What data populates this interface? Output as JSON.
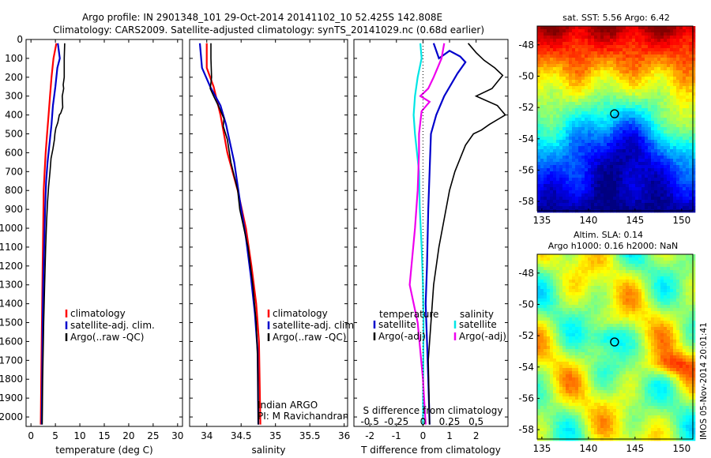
{
  "figure": {
    "title_line1": "Argo profile: IN 2901348_101 29-Oct-2014 20141102_10 52.425S 142.808E",
    "title_line2": "Climatology: CARS2009. Satellite-adjusted climatology: synTS_20141029.nc (0.68d earlier)",
    "side_stamp": "IMOS 05-Nov-2014 20:01:41"
  },
  "colors": {
    "climatology": "#ff0000",
    "satellite": "#0000cc",
    "argo": "#000000",
    "s_satellite": "#00e5e5",
    "s_argo": "#ee00ee"
  },
  "chart_data": [
    {
      "id": "temperature",
      "type": "line",
      "xlabel": "temperature (deg C)",
      "xlim": [
        -1,
        31
      ],
      "xticks": [
        0,
        5,
        10,
        15,
        20,
        25,
        30
      ],
      "ylim": [
        2050,
        0
      ],
      "yticks": [
        0,
        100,
        200,
        300,
        400,
        500,
        600,
        700,
        800,
        900,
        1000,
        1100,
        1200,
        1300,
        1400,
        1500,
        1600,
        1700,
        1800,
        1900,
        2000
      ],
      "legend": [
        "climatology",
        "satellite-adj. clim.",
        "Argo(..raw -QC)"
      ],
      "series": [
        {
          "key": "climatology",
          "x": [
            5.2,
            4.6,
            4.2,
            3.9,
            3.6,
            3.3,
            3.0,
            2.8,
            2.6,
            2.5,
            2.4,
            2.3,
            2.2,
            2.1,
            2.0
          ],
          "y": [
            20,
            100,
            200,
            300,
            400,
            500,
            600,
            700,
            800,
            1000,
            1200,
            1400,
            1600,
            1800,
            2040
          ]
        },
        {
          "key": "satellite",
          "x": [
            5.5,
            5.9,
            5.4,
            5.0,
            4.5,
            4.2,
            3.8,
            3.4,
            3.1,
            2.9,
            2.7,
            2.5,
            2.4,
            2.3,
            2.2
          ],
          "y": [
            20,
            100,
            150,
            250,
            350,
            450,
            550,
            650,
            750,
            900,
            1100,
            1300,
            1500,
            1800,
            2040
          ]
        },
        {
          "key": "argo",
          "x": [
            6.9,
            6.8,
            6.8,
            6.6,
            6.7,
            6.4,
            6.5,
            6.1,
            5.8,
            5.5,
            5.1,
            4.9,
            4.8,
            4.5,
            4.1,
            3.9,
            3.6,
            3.4,
            3.2,
            3.0,
            2.8,
            2.6,
            2.4,
            2.3
          ],
          "y": [
            20,
            100,
            200,
            240,
            260,
            300,
            360,
            390,
            400,
            440,
            470,
            500,
            530,
            580,
            630,
            700,
            780,
            860,
            960,
            1100,
            1300,
            1500,
            1800,
            2040
          ]
        }
      ]
    },
    {
      "id": "salinity",
      "type": "line",
      "xlabel": "salinity",
      "xlim": [
        33.75,
        36.05
      ],
      "xticks": [
        34,
        34.5,
        35,
        35.5,
        36
      ],
      "ylim": [
        2050,
        0
      ],
      "legend": [
        "climatology",
        "satellite-adj. clim.",
        "Argo(..raw -QC)"
      ],
      "annotations": [
        "Indian ARGO",
        "PI: M Ravichandran"
      ],
      "series": [
        {
          "key": "climatology",
          "x": [
            34.0,
            34.0,
            34.1,
            34.2,
            34.3,
            34.45,
            34.57,
            34.65,
            34.72,
            34.76,
            34.78
          ],
          "y": [
            20,
            150,
            250,
            400,
            600,
            800,
            1000,
            1200,
            1400,
            1600,
            2040
          ]
        },
        {
          "key": "satellite",
          "x": [
            33.9,
            33.93,
            34.05,
            34.2,
            34.28,
            34.4,
            34.48,
            34.57,
            34.64,
            34.7,
            34.74,
            34.75
          ],
          "y": [
            20,
            150,
            250,
            350,
            450,
            650,
            850,
            1050,
            1250,
            1450,
            1650,
            2040
          ]
        },
        {
          "key": "argo",
          "x": [
            34.06,
            34.06,
            34.07,
            34.06,
            34.05,
            34.1,
            34.18,
            34.25,
            34.24,
            34.3,
            34.35,
            34.45,
            34.48,
            34.6,
            34.67,
            34.72,
            34.74,
            34.75
          ],
          "y": [
            20,
            100,
            200,
            230,
            260,
            300,
            360,
            420,
            460,
            530,
            650,
            800,
            900,
            1100,
            1300,
            1500,
            1700,
            2040
          ]
        }
      ]
    },
    {
      "id": "difference",
      "type": "line",
      "xlabel": "T difference from climatology",
      "xlabel_top": "S difference from climatology",
      "xlim": [
        -2.6,
        3.2
      ],
      "xticks": [
        -2,
        -1,
        0,
        1,
        2
      ],
      "sticks_labels": [
        "-0.5",
        "-0.25",
        "0",
        "0.25",
        "0.5"
      ],
      "sticks_pos": [
        -2,
        -1,
        0,
        1,
        2
      ],
      "ylim": [
        2050,
        0
      ],
      "legend_headers": [
        "temperature",
        "salinity"
      ],
      "legend_left": [
        "satellite",
        "Argo(-adj)"
      ],
      "legend_right": [
        "satellite",
        "Argo(-adj)"
      ],
      "series": [
        {
          "key": "t_satellite",
          "x": [
            0.4,
            0.6,
            1.0,
            1.4,
            1.6,
            1.3,
            0.8,
            0.5,
            0.3,
            0.25,
            0.2,
            0.15,
            0.1,
            0.15,
            0.2,
            0.25
          ],
          "y": [
            20,
            100,
            60,
            90,
            120,
            180,
            300,
            400,
            500,
            700,
            900,
            1200,
            1400,
            1600,
            1800,
            2040
          ]
        },
        {
          "key": "t_argo",
          "x": [
            1.7,
            2.0,
            2.3,
            2.7,
            3.0,
            2.6,
            2.0,
            2.8,
            3.1,
            2.5,
            2.2,
            1.9,
            1.6,
            1.4,
            1.2,
            1.0,
            0.8,
            0.6,
            0.4,
            0.3,
            0.2,
            0.25
          ],
          "y": [
            20,
            70,
            110,
            150,
            190,
            260,
            300,
            350,
            400,
            450,
            480,
            500,
            560,
            630,
            700,
            800,
            950,
            1100,
            1300,
            1500,
            1700,
            2040
          ]
        },
        {
          "key": "s_satellite",
          "x": [
            -0.1,
            -0.05,
            -0.2,
            -0.3,
            -0.35,
            -0.3,
            -0.15,
            -0.12,
            -0.05,
            0.0,
            0.02,
            0.0
          ],
          "y": [
            20,
            100,
            200,
            300,
            400,
            500,
            700,
            900,
            1100,
            1300,
            1500,
            2040
          ]
        },
        {
          "key": "s_argo",
          "x": [
            0.8,
            0.7,
            0.55,
            0.4,
            0.2,
            -0.1,
            0.25,
            -0.05,
            -0.15,
            -0.15,
            -0.2,
            -0.3,
            -0.5,
            -0.2,
            0.0,
            0.1
          ],
          "y": [
            20,
            100,
            150,
            200,
            260,
            300,
            330,
            380,
            500,
            600,
            800,
            1000,
            1300,
            1500,
            1800,
            2040
          ]
        }
      ]
    },
    {
      "id": "sst_map",
      "type": "heatmap",
      "title": "sat. SST: 5.56 Argo: 6.42",
      "xlim": [
        134.5,
        151.2
      ],
      "ylim": [
        -58.6,
        -46.8
      ],
      "xticks": [
        135,
        140,
        145,
        150
      ],
      "yticks": [
        -48,
        -50,
        -52,
        -54,
        -56,
        -58
      ],
      "marker": {
        "lon": 142.8,
        "lat": -52.4
      }
    },
    {
      "id": "sla_map",
      "type": "heatmap",
      "title": "Altim. SLA: 0.14",
      "subtitle": "Argo h1000: 0.16 h2000: NaN",
      "xlim": [
        134.5,
        151.2
      ],
      "ylim": [
        -58.6,
        -46.8
      ],
      "xticks": [
        135,
        140,
        145,
        150
      ],
      "yticks": [
        -48,
        -50,
        -52,
        -54,
        -56,
        -58
      ],
      "marker": {
        "lon": 142.8,
        "lat": -52.4
      }
    }
  ]
}
